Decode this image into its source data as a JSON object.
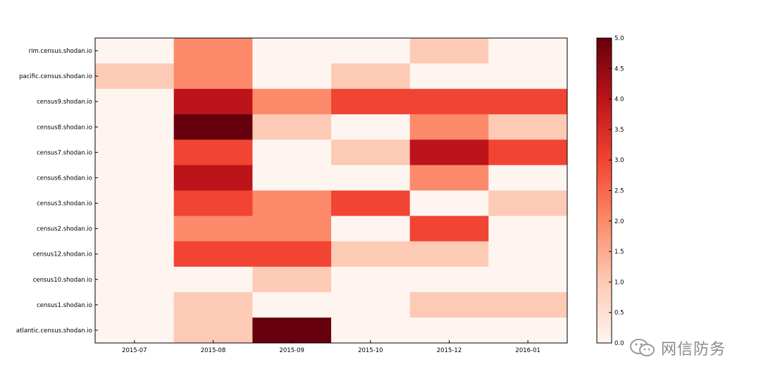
{
  "chart_data": {
    "type": "heatmap",
    "title": "",
    "xlabel": "",
    "ylabel": "",
    "x_categories": [
      "2015-07",
      "2015-08",
      "2015-09",
      "2015-10",
      "2015-12",
      "2016-01"
    ],
    "y_categories": [
      "rim.census.shodan.io",
      "pacific.census.shodan.io",
      "census9.shodan.io",
      "census8.shodan.io",
      "census7.shodan.io",
      "census6.shodan.io",
      "census3.shodan.io",
      "census2.shodan.io",
      "census12.shodan.io",
      "census10.shodan.io",
      "census1.shodan.io",
      "atlantic.census.shodan.io"
    ],
    "values": [
      [
        0,
        2,
        0,
        0,
        1,
        0
      ],
      [
        1,
        2,
        0,
        1,
        0,
        0
      ],
      [
        0,
        4,
        2,
        3,
        3,
        3
      ],
      [
        0,
        5,
        1,
        0,
        2,
        1
      ],
      [
        0,
        3,
        0,
        1,
        4,
        3
      ],
      [
        0,
        4,
        0,
        0,
        2,
        0
      ],
      [
        0,
        3,
        2,
        3,
        0,
        1
      ],
      [
        0,
        2,
        2,
        0,
        3,
        0
      ],
      [
        0,
        3,
        3,
        1,
        1,
        0
      ],
      [
        0,
        0,
        1,
        0,
        0,
        0
      ],
      [
        0,
        1,
        0,
        0,
        1,
        1
      ],
      [
        0,
        1,
        5,
        0,
        0,
        0
      ]
    ],
    "colormap": "Reds",
    "vmin": 0,
    "vmax": 5,
    "colorbar_ticks": [
      "0.0",
      "0.5",
      "1.0",
      "1.5",
      "2.0",
      "2.5",
      "3.0",
      "3.5",
      "4.0",
      "4.5",
      "5.0"
    ],
    "colors": [
      "#fff5f0",
      "#fdcab5",
      "#fc8a6a",
      "#f14432",
      "#bc141a",
      "#67000d"
    ]
  },
  "watermark": {
    "text": "网信防务",
    "icon": "wechat-icon"
  }
}
